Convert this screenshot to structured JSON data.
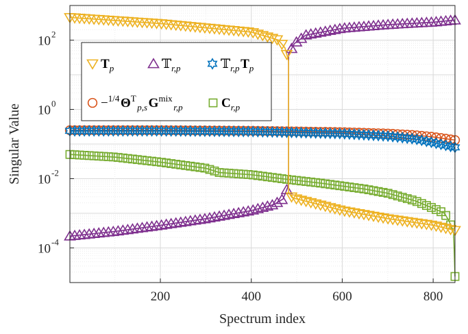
{
  "chart_data": {
    "type": "scatter",
    "xlabel": "Spectrum index",
    "ylabel": "Singular Value",
    "xlim": [
      1,
      848
    ],
    "ylim": [
      1e-05,
      1000
    ],
    "yscale": "log",
    "grid": true,
    "minor_grid": true,
    "legend_position": "upper-left",
    "x_ticks": [
      200,
      400,
      600,
      800
    ],
    "y_ticks": [
      {
        "value": 0.0001,
        "base": "10",
        "exp": "-4"
      },
      {
        "value": 0.01,
        "base": "10",
        "exp": "-2"
      },
      {
        "value": 1,
        "base": "10",
        "exp": "0"
      },
      {
        "value": 100,
        "base": "10",
        "exp": "2"
      }
    ],
    "series": [
      {
        "name": "T̃_p",
        "marker": "triangle-down",
        "color": "#EDB120",
        "points": [
          [
            1,
            450
          ],
          [
            200,
            300
          ],
          [
            400,
            170
          ],
          [
            460,
            100
          ],
          [
            474,
            60
          ],
          [
            482,
            25
          ],
          [
            482,
            0.004
          ],
          [
            490,
            0.0028
          ],
          [
            600,
            0.0012
          ],
          [
            700,
            0.0007
          ],
          [
            800,
            0.00045
          ],
          [
            848,
            0.00032
          ]
        ]
      },
      {
        "name": "𝕋̃_{r,p}",
        "marker": "triangle-up",
        "color": "#7E2F8E",
        "points": [
          [
            1,
            0.00022
          ],
          [
            100,
            0.0003
          ],
          [
            200,
            0.00045
          ],
          [
            300,
            0.0007
          ],
          [
            400,
            0.0012
          ],
          [
            450,
            0.0018
          ],
          [
            470,
            0.0026
          ],
          [
            482,
            0.0065
          ],
          [
            482,
            40
          ],
          [
            495,
            80
          ],
          [
            520,
            140
          ],
          [
            600,
            220
          ],
          [
            700,
            280
          ],
          [
            800,
            330
          ],
          [
            848,
            380
          ]
        ]
      },
      {
        "name": "𝕋̃_{r,p} T̃_p",
        "marker": "hexagram",
        "color": "#0072BD",
        "points": [
          [
            1,
            0.24
          ],
          [
            200,
            0.24
          ],
          [
            400,
            0.23
          ],
          [
            500,
            0.215
          ],
          [
            600,
            0.2
          ],
          [
            700,
            0.17
          ],
          [
            760,
            0.14
          ],
          [
            800,
            0.11
          ],
          [
            848,
            0.08
          ]
        ]
      },
      {
        "name": "−1/4 Θ̃ᵀ_{p,s} G̃^{mix}_{r,p}",
        "marker": "circle",
        "color": "#D95319",
        "points": [
          [
            1,
            0.25
          ],
          [
            200,
            0.25
          ],
          [
            400,
            0.24
          ],
          [
            500,
            0.23
          ],
          [
            600,
            0.22
          ],
          [
            700,
            0.2
          ],
          [
            760,
            0.18
          ],
          [
            800,
            0.16
          ],
          [
            848,
            0.13
          ]
        ]
      },
      {
        "name": "C_{r,p}",
        "marker": "square",
        "color": "#77AC30",
        "points": [
          [
            1,
            0.05
          ],
          [
            100,
            0.042
          ],
          [
            200,
            0.03
          ],
          [
            300,
            0.02
          ],
          [
            330,
            0.015
          ],
          [
            400,
            0.013
          ],
          [
            480,
            0.0095
          ],
          [
            550,
            0.0075
          ],
          [
            650,
            0.005
          ],
          [
            700,
            0.0038
          ],
          [
            760,
            0.0023
          ],
          [
            800,
            0.0014
          ],
          [
            825,
            0.001
          ],
          [
            835,
            0.0006
          ],
          [
            845,
            0.00028
          ],
          [
            848,
            1.5e-05
          ]
        ]
      }
    ],
    "legend": {
      "rows": [
        [
          {
            "symbol": "triangle-down",
            "color": "#EDB120",
            "parts": [
              {
                "t": "T",
                "c": "bf"
              },
              {
                "t": "p",
                "c": "sub"
              }
            ]
          },
          {
            "symbol": "triangle-up",
            "color": "#7E2F8E",
            "parts": [
              {
                "t": "𝕋",
                "c": ""
              },
              {
                "t": "r,p",
                "c": "sub"
              }
            ]
          },
          {
            "symbol": "hexagram",
            "color": "#0072BD",
            "parts": [
              {
                "t": "𝕋",
                "c": ""
              },
              {
                "t": "r,p",
                "c": "sub"
              },
              {
                "t": "T",
                "c": "bf"
              },
              {
                "t": "p",
                "c": "sub"
              }
            ]
          }
        ],
        [
          {
            "symbol": "circle",
            "color": "#D95319",
            "parts": [
              {
                "t": "−",
                "c": ""
              },
              {
                "t": "1/4",
                "c": "sup"
              },
              {
                "t": "Θ",
                "c": "bf"
              },
              {
                "t": "T",
                "c": "sup"
              },
              {
                "t": "p,s",
                "c": "sub"
              },
              {
                "t": "G",
                "c": "bf"
              },
              {
                "t": "mix",
                "c": "sup"
              },
              {
                "t": "r,p",
                "c": "sub"
              }
            ]
          },
          {
            "symbol": "square",
            "color": "#77AC30",
            "parts": [
              {
                "t": "C",
                "c": "bf"
              },
              {
                "t": "r,p",
                "c": "sub"
              }
            ]
          }
        ]
      ]
    }
  }
}
